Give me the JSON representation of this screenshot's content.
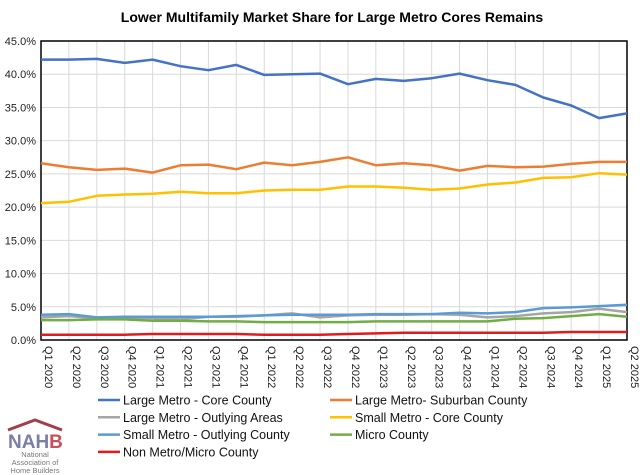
{
  "chart_data": {
    "type": "line",
    "title": "Lower Multifamily Market Share for Large Metro Cores Remains",
    "xlabel": "",
    "ylabel": "",
    "ylim": [
      0,
      45
    ],
    "yticks": [
      "0.0%",
      "5.0%",
      "10.0%",
      "15.0%",
      "20.0%",
      "25.0%",
      "30.0%",
      "35.0%",
      "40.0%",
      "45.0%"
    ],
    "grid": true,
    "legend_position": "bottom",
    "categories": [
      "Q1 2020",
      "Q2 2020",
      "Q3 2020",
      "Q4 2020",
      "Q1 2021",
      "Q2 2021",
      "Q3 2021",
      "Q4 2021",
      "Q1 2022",
      "Q2 2022",
      "Q3 2022",
      "Q4 2022",
      "Q1 2023",
      "Q2 2023",
      "Q3 2023",
      "Q4 2023",
      "Q1 2024",
      "Q2 2024",
      "Q3 2024",
      "Q4 2024",
      "Q1 2025",
      "Q2 2025"
    ],
    "series": [
      {
        "name": "Large Metro - Core County",
        "color": "#4472C4",
        "values": [
          42.2,
          42.2,
          42.3,
          41.7,
          42.2,
          41.2,
          40.6,
          41.4,
          39.9,
          40.0,
          40.1,
          38.5,
          39.3,
          39.0,
          39.4,
          40.1,
          39.1,
          38.4,
          36.5,
          35.3,
          33.4,
          34.1
        ]
      },
      {
        "name": "Large Metro- Suburban County",
        "color": "#ED7D31",
        "values": [
          26.6,
          26.0,
          25.6,
          25.8,
          25.2,
          26.3,
          26.4,
          25.7,
          26.7,
          26.3,
          26.8,
          27.5,
          26.3,
          26.6,
          26.3,
          25.5,
          26.2,
          26.0,
          26.1,
          26.5,
          26.8,
          26.8
        ]
      },
      {
        "name": "Large Metro - Outlying Areas",
        "color": "#A5A5A5",
        "values": [
          3.4,
          3.6,
          3.3,
          3.3,
          3.3,
          3.1,
          3.5,
          3.5,
          3.7,
          4.0,
          3.4,
          3.7,
          3.8,
          3.8,
          3.9,
          3.8,
          3.4,
          3.6,
          4.0,
          4.2,
          4.7,
          4.2
        ]
      },
      {
        "name": "Small Metro - Core County",
        "color": "#FFC000",
        "values": [
          20.6,
          20.8,
          21.7,
          21.9,
          22.0,
          22.3,
          22.1,
          22.1,
          22.5,
          22.6,
          22.6,
          23.1,
          23.1,
          22.9,
          22.6,
          22.8,
          23.4,
          23.7,
          24.4,
          24.5,
          25.1,
          24.9
        ]
      },
      {
        "name": "Small Metro - Outlying County",
        "color": "#5B9BD5",
        "values": [
          3.8,
          3.9,
          3.4,
          3.5,
          3.5,
          3.5,
          3.5,
          3.6,
          3.7,
          3.8,
          3.8,
          3.8,
          3.9,
          3.9,
          3.9,
          4.1,
          4.0,
          4.2,
          4.8,
          4.9,
          5.1,
          5.3
        ]
      },
      {
        "name": "Micro County",
        "color": "#70AD47",
        "values": [
          3.0,
          3.0,
          3.1,
          3.1,
          2.9,
          2.9,
          2.8,
          2.8,
          2.7,
          2.7,
          2.7,
          2.7,
          2.8,
          2.8,
          2.8,
          2.8,
          2.8,
          3.2,
          3.3,
          3.6,
          3.9,
          3.5
        ]
      },
      {
        "name": "Non Metro/Micro County",
        "color": "#E31A1C",
        "values": [
          0.8,
          0.8,
          0.8,
          0.8,
          0.9,
          0.9,
          0.9,
          0.9,
          0.8,
          0.8,
          0.8,
          0.9,
          1.0,
          1.1,
          1.1,
          1.1,
          1.1,
          1.1,
          1.1,
          1.2,
          1.2,
          1.2
        ]
      }
    ]
  },
  "logo": {
    "text": "NAHB",
    "subtitle": "National Association of Home Builders"
  }
}
